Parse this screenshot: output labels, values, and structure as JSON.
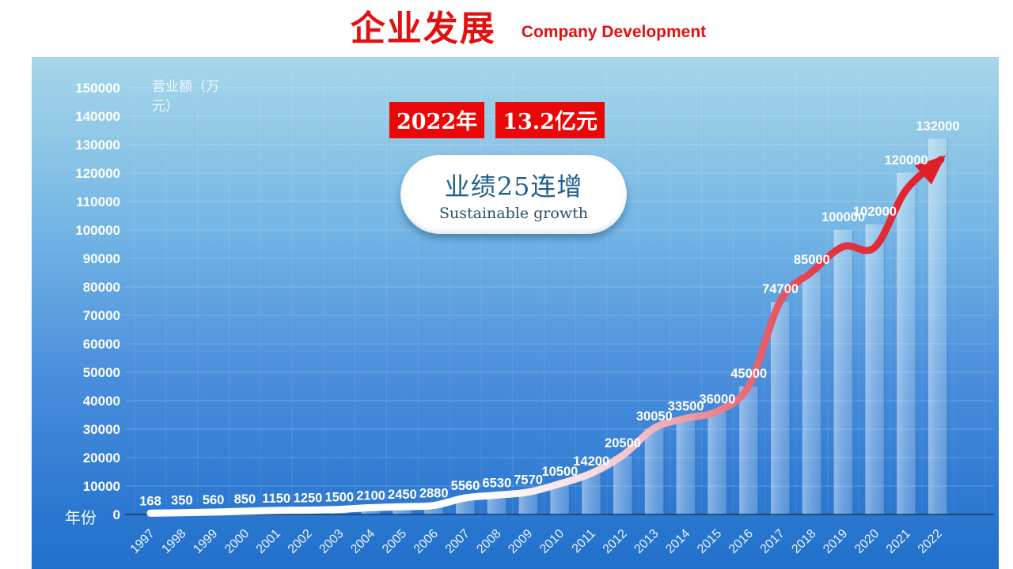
{
  "header": {
    "title": "企业发展",
    "subtitle": "Company Development",
    "color": "#e31010"
  },
  "badges": {
    "year": "2022年",
    "amount": "13.2亿元",
    "background": "#ea0707",
    "text_color": "#ffffff"
  },
  "bubble": {
    "title": "业绩25连增",
    "subtitle": "Sustainable growth",
    "title_color": "#23608f",
    "subtitle_color": "#2d5068"
  },
  "chart_data": {
    "type": "bar",
    "title": "企业发展 Company Development",
    "xlabel": "年份",
    "ylabel": "营业额（万元）",
    "categories": [
      "1997",
      "1998",
      "1999",
      "2000",
      "2001",
      "2002",
      "2003",
      "2004",
      "2005",
      "2006",
      "2007",
      "2008",
      "2009",
      "2010",
      "2011",
      "2012",
      "2013",
      "2014",
      "2015",
      "2016",
      "2017",
      "2018",
      "2019",
      "2020",
      "2021",
      "2022"
    ],
    "values": [
      168,
      350,
      560,
      850,
      1150,
      1250,
      1500,
      2100,
      2450,
      2880,
      5560,
      6530,
      7570,
      10500,
      14200,
      20500,
      30050,
      33500,
      36000,
      45000,
      74700,
      85000,
      100000,
      102000,
      120000,
      132000
    ],
    "data_labels": [
      "168",
      "350",
      "560",
      "850",
      "1150",
      "1250",
      "1500",
      "2100",
      "2450",
      "2880",
      "5560",
      "6530",
      "7570",
      "10500",
      "14200",
      "20500",
      "30050",
      "33500",
      "36000",
      "45000",
      "74700",
      "85000",
      "100000",
      "102000",
      "120000",
      "132000"
    ],
    "ylim": [
      0,
      150000
    ],
    "ytick_step": 10000,
    "ytick_labels": [
      "0",
      "10000",
      "20000",
      "30000",
      "40000",
      "50000",
      "60000",
      "70000",
      "80000",
      "90000",
      "100000",
      "110000",
      "120000",
      "130000",
      "140000",
      "150000"
    ],
    "xtick_rotation": -45,
    "grid": true,
    "legend": null,
    "background_gradient": [
      "#a6d7e9",
      "#74b6e5",
      "#4a8fdc",
      "#2170cb"
    ],
    "bar_color": "rgba(255,255,255,0.30)",
    "trend_line": {
      "style": "white-to-red arrow following bar tops",
      "gradient": [
        "#ffffff",
        "#f6dde2",
        "#efa9b3",
        "#e76873",
        "#e02430"
      ]
    },
    "label_color": "#ffffff"
  }
}
